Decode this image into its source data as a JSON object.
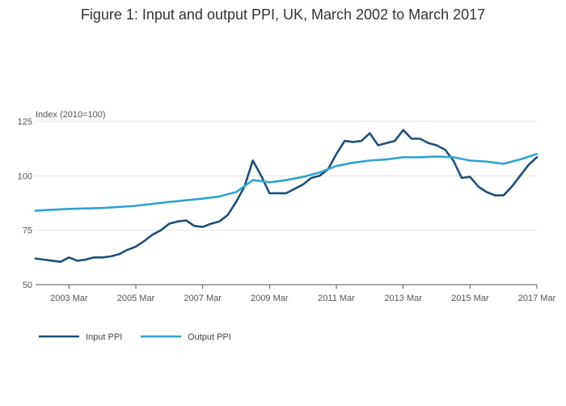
{
  "chart_data": {
    "type": "line",
    "title": "Figure 1: Input and output PPI, UK, March 2002 to March 2017",
    "ylabel": "Index (2010=100)",
    "xlabel": "",
    "ylim": [
      50,
      125
    ],
    "xlim": [
      "2002-03",
      "2017-03"
    ],
    "y_ticks": [
      50,
      75,
      100,
      125
    ],
    "x_ticks": [
      {
        "date": "2003-03",
        "label": "2003 Mar"
      },
      {
        "date": "2005-03",
        "label": "2005 Mar"
      },
      {
        "date": "2007-03",
        "label": "2007 Mar"
      },
      {
        "date": "2009-03",
        "label": "2009 Mar"
      },
      {
        "date": "2011-03",
        "label": "2011 Mar"
      },
      {
        "date": "2013-03",
        "label": "2013 Mar"
      },
      {
        "date": "2015-03",
        "label": "2015 Mar"
      },
      {
        "date": "2017-03",
        "label": "2017 Mar"
      }
    ],
    "grid": true,
    "legend_position": "bottom-left",
    "series": [
      {
        "name": "Input PPI",
        "color": "#1f4e79",
        "points": [
          [
            "2002-03",
            62
          ],
          [
            "2002-06",
            61.5
          ],
          [
            "2002-09",
            61
          ],
          [
            "2002-12",
            60.5
          ],
          [
            "2003-03",
            62.5
          ],
          [
            "2003-06",
            61
          ],
          [
            "2003-09",
            61.5
          ],
          [
            "2003-12",
            62.5
          ],
          [
            "2004-03",
            62.5
          ],
          [
            "2004-06",
            63
          ],
          [
            "2004-09",
            64
          ],
          [
            "2004-12",
            66
          ],
          [
            "2005-03",
            67.5
          ],
          [
            "2005-06",
            70
          ],
          [
            "2005-09",
            73
          ],
          [
            "2005-12",
            75
          ],
          [
            "2006-03",
            78
          ],
          [
            "2006-06",
            79
          ],
          [
            "2006-09",
            79.5
          ],
          [
            "2006-12",
            77
          ],
          [
            "2007-03",
            76.5
          ],
          [
            "2007-06",
            78
          ],
          [
            "2007-09",
            79
          ],
          [
            "2007-12",
            82
          ],
          [
            "2008-03",
            88
          ],
          [
            "2008-06",
            95
          ],
          [
            "2008-09",
            107
          ],
          [
            "2008-12",
            100
          ],
          [
            "2009-03",
            92
          ],
          [
            "2009-06",
            92
          ],
          [
            "2009-09",
            92
          ],
          [
            "2009-12",
            94
          ],
          [
            "2010-03",
            96
          ],
          [
            "2010-06",
            99
          ],
          [
            "2010-09",
            100
          ],
          [
            "2010-12",
            103
          ],
          [
            "2011-03",
            110
          ],
          [
            "2011-06",
            116
          ],
          [
            "2011-09",
            115.5
          ],
          [
            "2011-12",
            116
          ],
          [
            "2012-03",
            119.5
          ],
          [
            "2012-06",
            114
          ],
          [
            "2012-09",
            115
          ],
          [
            "2012-12",
            116
          ],
          [
            "2013-03",
            121
          ],
          [
            "2013-06",
            117
          ],
          [
            "2013-09",
            117
          ],
          [
            "2013-12",
            115
          ],
          [
            "2014-03",
            114
          ],
          [
            "2014-06",
            112
          ],
          [
            "2014-09",
            107
          ],
          [
            "2014-12",
            99
          ],
          [
            "2015-03",
            99.5
          ],
          [
            "2015-06",
            95
          ],
          [
            "2015-09",
            92.5
          ],
          [
            "2015-12",
            91
          ],
          [
            "2016-03",
            91
          ],
          [
            "2016-06",
            95
          ],
          [
            "2016-09",
            100
          ],
          [
            "2016-12",
            105
          ],
          [
            "2017-03",
            108.5
          ]
        ]
      },
      {
        "name": "Output PPI",
        "color": "#2ea3d1",
        "points": [
          [
            "2002-03",
            84
          ],
          [
            "2003-03",
            84.8
          ],
          [
            "2004-03",
            85.2
          ],
          [
            "2005-03",
            86.2
          ],
          [
            "2006-03",
            88
          ],
          [
            "2007-03",
            89.5
          ],
          [
            "2007-09",
            90.5
          ],
          [
            "2008-03",
            92.5
          ],
          [
            "2008-09",
            98
          ],
          [
            "2009-03",
            97
          ],
          [
            "2009-09",
            98
          ],
          [
            "2010-03",
            99.5
          ],
          [
            "2010-09",
            101.5
          ],
          [
            "2011-03",
            104.5
          ],
          [
            "2011-09",
            106
          ],
          [
            "2012-03",
            107
          ],
          [
            "2012-09",
            107.5
          ],
          [
            "2013-03",
            108.5
          ],
          [
            "2013-09",
            108.5
          ],
          [
            "2014-03",
            108.8
          ],
          [
            "2014-09",
            108.5
          ],
          [
            "2015-03",
            107
          ],
          [
            "2015-09",
            106.5
          ],
          [
            "2016-03",
            105.5
          ],
          [
            "2016-09",
            107.5
          ],
          [
            "2017-03",
            110
          ]
        ]
      }
    ]
  }
}
